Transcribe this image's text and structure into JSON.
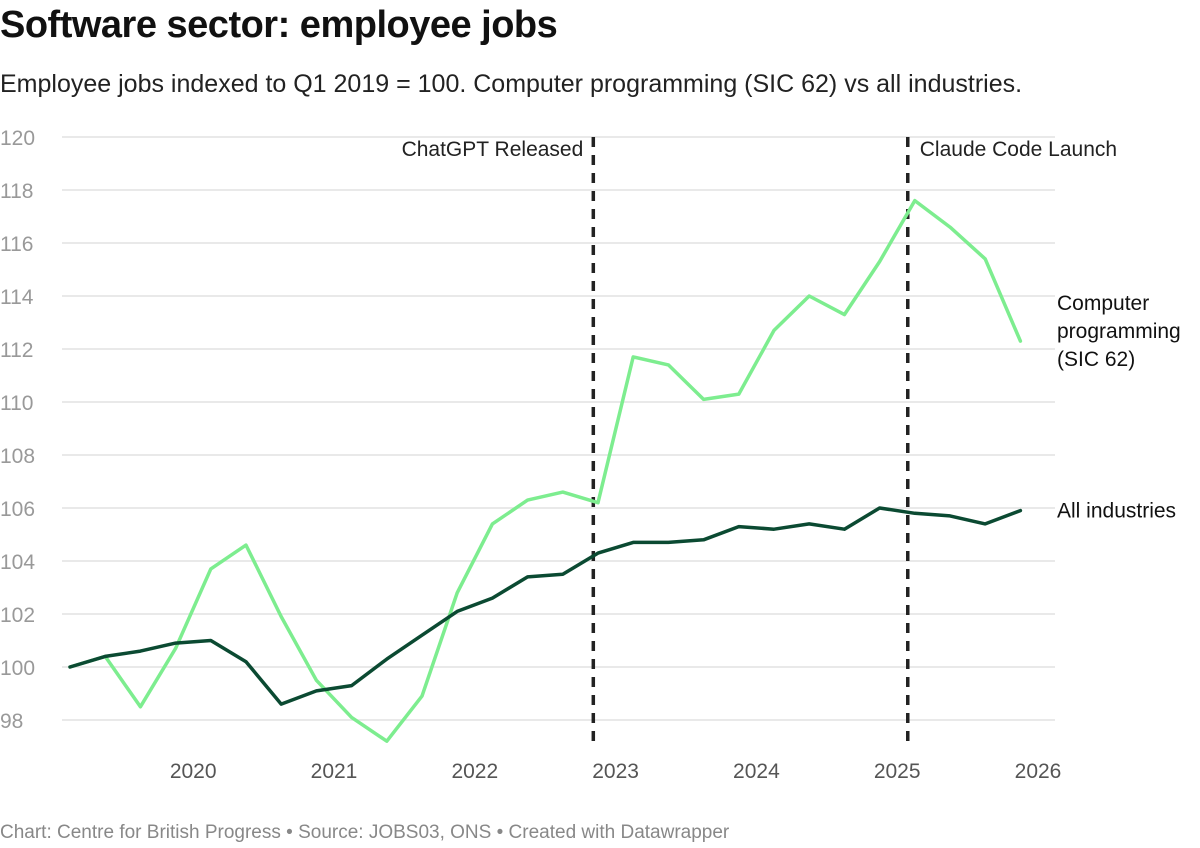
{
  "title": "Software sector: employee jobs",
  "subtitle": "Employee jobs indexed to Q1 2019 = 100. Computer programming (SIC 62) vs all industries.",
  "footer": "Chart: Centre for British Progress • Source: JOBS03, ONS • Created with Datawrapper",
  "chart_data": {
    "type": "line",
    "title": "Software sector: employee jobs",
    "xlabel": "",
    "ylabel": "",
    "ylim": [
      97,
      120
    ],
    "yticks": [
      98,
      100,
      102,
      104,
      106,
      108,
      110,
      112,
      114,
      116,
      118,
      120
    ],
    "xticks": [
      "2020",
      "2021",
      "2022",
      "2023",
      "2024",
      "2025",
      "2026"
    ],
    "grid": true,
    "x": [
      "2019 Q1",
      "2019 Q2",
      "2019 Q3",
      "2019 Q4",
      "2020 Q1",
      "2020 Q2",
      "2020 Q3",
      "2020 Q4",
      "2021 Q1",
      "2021 Q2",
      "2021 Q3",
      "2021 Q4",
      "2022 Q1",
      "2022 Q2",
      "2022 Q3",
      "2022 Q4",
      "2023 Q1",
      "2023 Q2",
      "2023 Q3",
      "2023 Q4",
      "2024 Q1",
      "2024 Q2",
      "2024 Q3",
      "2024 Q4",
      "2025 Q1",
      "2025 Q2",
      "2025 Q3",
      "2025 Q4"
    ],
    "series": [
      {
        "name": "Computer programming (SIC 62)",
        "label_lines": [
          "Computer",
          "programming",
          "(SIC 62)"
        ],
        "color": "#7ded8f",
        "values": [
          100,
          100.4,
          98.5,
          100.7,
          103.7,
          104.6,
          101.9,
          99.5,
          98.1,
          97.2,
          98.9,
          102.8,
          105.4,
          106.3,
          106.6,
          106.2,
          111.7,
          111.4,
          110.1,
          110.3,
          112.7,
          114.0,
          113.3,
          115.3,
          117.6,
          116.6,
          115.4,
          112.3
        ]
      },
      {
        "name": "All industries",
        "label_lines": [
          "All industries"
        ],
        "color": "#0b4a32",
        "values": [
          100,
          100.4,
          100.6,
          100.9,
          101.0,
          100.2,
          98.6,
          99.1,
          99.3,
          100.3,
          101.2,
          102.1,
          102.6,
          103.4,
          103.5,
          104.3,
          104.7,
          104.7,
          104.8,
          105.3,
          105.2,
          105.4,
          105.2,
          106.0,
          105.8,
          105.7,
          105.4,
          105.9
        ]
      }
    ],
    "annotations": [
      {
        "label": "ChatGPT Released",
        "date": "2022-11-30",
        "position": "left"
      },
      {
        "label": "Claude Code Launch",
        "date": "2025-02-24",
        "position": "right"
      }
    ]
  }
}
